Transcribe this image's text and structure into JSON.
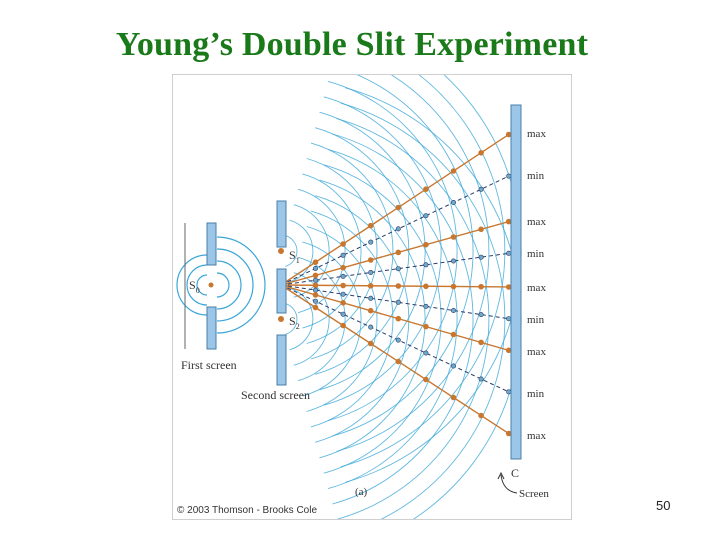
{
  "title": "Young’s Double Slit Experiment",
  "page_number": "50",
  "figure": {
    "source_label": "S",
    "source_sub": "0",
    "slit1_label": "S",
    "slit1_sub": "1",
    "slit2_label": "S",
    "slit2_sub": "2",
    "first_screen_label": "First screen",
    "second_screen_label": "Second screen",
    "screen_letter": "C",
    "screen_label": "Screen",
    "panel_label": "(a)",
    "copyright": "© 2003 Thomson - Brooks Cole",
    "fringe_labels": [
      "max",
      "min",
      "max",
      "min",
      "max",
      "min",
      "max",
      "min",
      "max"
    ],
    "colors": {
      "title": "#1a7a1a",
      "wavefront": "#3aa6d8",
      "maxima_line": "#c8772f",
      "minima_line": "#2b3a66",
      "screen_fill": "#9cc6e8"
    }
  }
}
